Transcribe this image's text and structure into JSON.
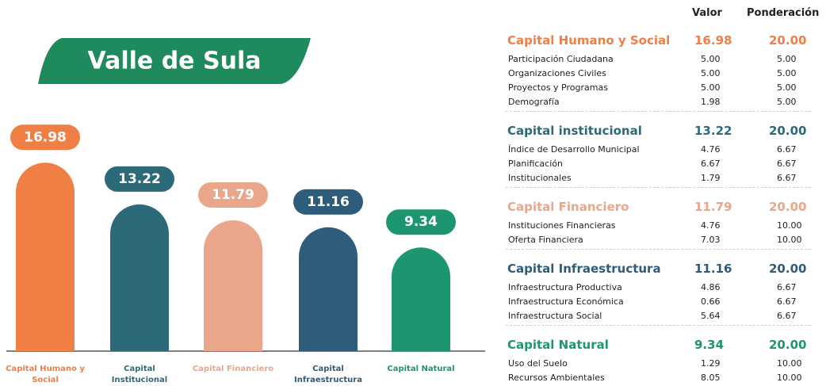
{
  "chart_data": {
    "type": "bar",
    "title": "Valle de Sula",
    "categories": [
      "Capital Humano y Social",
      "Capital Institucional",
      "Capital Financiero",
      "Capital Infraestructura",
      "Capital Natural"
    ],
    "values": [
      16.98,
      13.22,
      11.79,
      11.16,
      9.34
    ],
    "colors": [
      "#ef7f45",
      "#2d6a79",
      "#eaa68a",
      "#2e5c7b",
      "#1b9670"
    ]
  },
  "table": {
    "headers": [
      "Valor",
      "Ponderación"
    ],
    "groups": [
      {
        "name": "Capital Humano y Social",
        "valor": "16.98",
        "ponderacion": "20.00",
        "color": "#ef7f45",
        "items": [
          [
            "Participación Ciudadana",
            "5.00",
            "5.00"
          ],
          [
            "Organizaciones Civiles",
            "5.00",
            "5.00"
          ],
          [
            "Proyectos y Programas",
            "5.00",
            "5.00"
          ],
          [
            "Demografía",
            "1.98",
            "5.00"
          ]
        ]
      },
      {
        "name": "Capital institucional",
        "valor": "13.22",
        "ponderacion": "20.00",
        "color": "#2d6a79",
        "items": [
          [
            "Índice de Desarrollo Municipal",
            "4.76",
            "6.67"
          ],
          [
            "Planificación",
            "6.67",
            "6.67"
          ],
          [
            "Institucionales",
            "1.79",
            "6.67"
          ]
        ]
      },
      {
        "name": "Capital Financiero",
        "valor": "11.79",
        "ponderacion": "20.00",
        "color": "#eaa68a",
        "items": [
          [
            "Instituciones Financieras",
            "4.76",
            "10.00"
          ],
          [
            "Oferta Financiera",
            "7.03",
            "10.00"
          ]
        ]
      },
      {
        "name": "Capital Infraestructura",
        "valor": "11.16",
        "ponderacion": "20.00",
        "color": "#2e5c7b",
        "items": [
          [
            "Infraestructura Productiva",
            "4.86",
            "6.67"
          ],
          [
            "Infraestructura Económica",
            "0.66",
            "6.67"
          ],
          [
            "Infraestructura Social",
            "5.64",
            "6.67"
          ]
        ]
      },
      {
        "name": "Capital Natural",
        "valor": "9.34",
        "ponderacion": "20.00",
        "color": "#1b9670",
        "items": [
          [
            "Uso del Suelo",
            "1.29",
            "10.00"
          ],
          [
            "Recursos Ambientales",
            "8.05",
            "10.00"
          ]
        ]
      }
    ]
  }
}
